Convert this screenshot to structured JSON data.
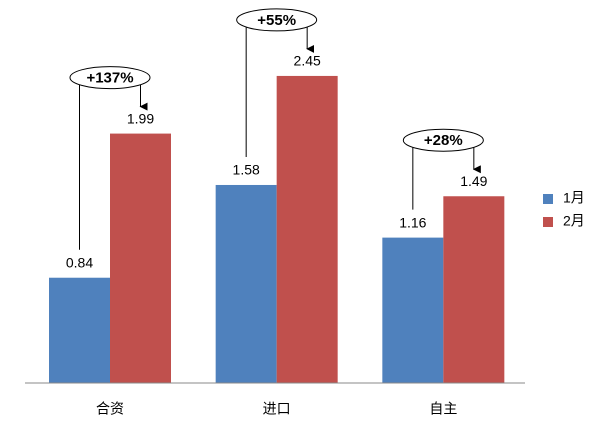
{
  "chart_data": {
    "type": "bar",
    "categories": [
      "合资",
      "进口",
      "自主"
    ],
    "series": [
      {
        "name": "1月",
        "color": "#4f81bd",
        "values": [
          0.84,
          1.58,
          1.16
        ]
      },
      {
        "name": "2月",
        "color": "#c0504d",
        "values": [
          1.99,
          2.45,
          1.49
        ]
      }
    ],
    "annotations": [
      "+137%",
      "+55%",
      "+28%"
    ],
    "ylim": [
      0,
      3
    ],
    "legend": "right"
  }
}
